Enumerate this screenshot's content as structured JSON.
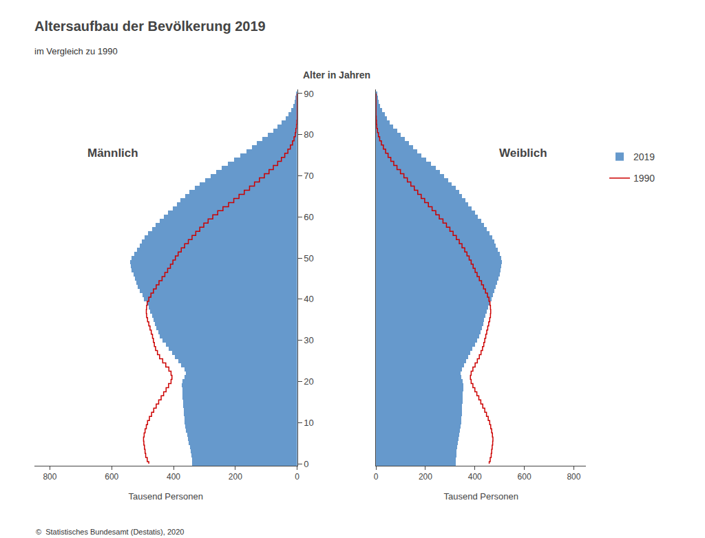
{
  "chart_data": {
    "type": "bar",
    "orientation": "horizontal",
    "title": "Altersaufbau der Bevölkerung 2019",
    "subtitle": "im Vergleich zu 1990",
    "ylabel": "Alter in Jahren",
    "source": "©  Statistisches Bundesamt (Destatis), 2020",
    "y": [
      0,
      1,
      2,
      3,
      4,
      5,
      6,
      7,
      8,
      9,
      10,
      11,
      12,
      13,
      14,
      15,
      16,
      17,
      18,
      19,
      20,
      21,
      22,
      23,
      24,
      25,
      26,
      27,
      28,
      29,
      30,
      31,
      32,
      33,
      34,
      35,
      36,
      37,
      38,
      39,
      40,
      41,
      42,
      43,
      44,
      45,
      46,
      47,
      48,
      49,
      50,
      51,
      52,
      53,
      54,
      55,
      56,
      57,
      58,
      59,
      60,
      61,
      62,
      63,
      64,
      65,
      66,
      67,
      68,
      69,
      70,
      71,
      72,
      73,
      74,
      75,
      76,
      77,
      78,
      79,
      80,
      81,
      82,
      83,
      84,
      85,
      86,
      87,
      88,
      89,
      90
    ],
    "ylim": [
      -0.5,
      91
    ],
    "yticks": [
      0,
      10,
      20,
      30,
      40,
      50,
      60,
      70,
      80,
      90
    ],
    "grid": false,
    "legend": "right",
    "panels": [
      {
        "label": "Männlich",
        "xlabel": "Tausend Personen",
        "xlim": [
          850,
          0
        ],
        "xticks": [
          0,
          200,
          400,
          600,
          800
        ],
        "series": [
          {
            "name": "2019",
            "type": "bar",
            "color": "#6699cc",
            "values": [
              340,
              340,
              342,
              344,
              347,
              350,
              353,
              356,
              359,
              362,
              364,
              365,
              366,
              367,
              368,
              369,
              370,
              371,
              372,
              373,
              370,
              365,
              360,
              365,
              375,
              385,
              395,
              405,
              415,
              425,
              435,
              445,
              450,
              455,
              460,
              465,
              470,
              475,
              480,
              488,
              495,
              500,
              510,
              515,
              520,
              525,
              530,
              535,
              538,
              540,
              535,
              528,
              518,
              510,
              502,
              493,
              482,
              470,
              458,
              445,
              432,
              418,
              403,
              390,
              378,
              363,
              348,
              332,
              315,
              298,
              280,
              262,
              244,
              225,
              205,
              185,
              165,
              147,
              130,
              113,
              95,
              78,
              63,
              50,
              38,
              28,
              20,
              13,
              8,
              5,
              2
            ]
          },
          {
            "name": "1990",
            "type": "line",
            "line_style": "step",
            "color": "#cc0000",
            "values": [
              480,
              485,
              490,
              492,
              494,
              496,
              497,
              495,
              492,
              488,
              484,
              478,
              471,
              464,
              456,
              448,
              440,
              432,
              424,
              416,
              408,
              405,
              408,
              415,
              425,
              435,
              445,
              452,
              458,
              462,
              465,
              468,
              472,
              476,
              480,
              484,
              487,
              488,
              487,
              485,
              480,
              473,
              465,
              456,
              447,
              437,
              428,
              419,
              410,
              402,
              394,
              385,
              375,
              364,
              352,
              340,
              328,
              315,
              302,
              288,
              273,
              257,
              240,
              222,
              205,
              188,
              171,
              154,
              138,
              122,
              106,
              91,
              77,
              63,
              51,
              40,
              30,
              22,
              15,
              10,
              6,
              4,
              2,
              1,
              0,
              0,
              0,
              0,
              0,
              0,
              0
            ]
          }
        ]
      },
      {
        "label": "Weiblich",
        "xlabel": "Tausend Personen",
        "xlim": [
          0,
          850
        ],
        "xticks": [
          0,
          200,
          400,
          600,
          800
        ],
        "series": [
          {
            "name": "2019",
            "type": "bar",
            "color": "#6699cc",
            "values": [
              322,
              323,
              325,
              327,
              329,
              332,
              334,
              337,
              340,
              343,
              345,
              346,
              347,
              348,
              349,
              350,
              351,
              352,
              353,
              354,
              350,
              346,
              342,
              347,
              356,
              365,
              374,
              382,
              391,
              400,
              409,
              418,
              423,
              428,
              433,
              438,
              443,
              448,
              453,
              460,
              467,
              472,
              480,
              485,
              490,
              495,
              500,
              505,
              508,
              510,
              507,
              500,
              492,
              485,
              478,
              470,
              460,
              449,
              438,
              426,
              413,
              400,
              387,
              374,
              362,
              349,
              336,
              322,
              307,
              291,
              275,
              258,
              241,
              223,
              204,
              185,
              167,
              150,
              134,
              118,
              101,
              85,
              70,
              57,
              45,
              35,
              26,
              18,
              12,
              7,
              3
            ]
          },
          {
            "name": "1990",
            "type": "line",
            "line_style": "step",
            "color": "#cc0000",
            "values": [
              458,
              462,
              466,
              468,
              470,
              472,
              473,
              471,
              468,
              464,
              460,
              454,
              447,
              440,
              432,
              424,
              416,
              408,
              400,
              392,
              385,
              382,
              385,
              392,
              401,
              410,
              418,
              425,
              431,
              436,
              440,
              444,
              448,
              452,
              456,
              460,
              463,
              464,
              463,
              461,
              457,
              451,
              443,
              435,
              427,
              418,
              409,
              401,
              393,
              385,
              377,
              368,
              359,
              348,
              337,
              325,
              312,
              299,
              285,
              271,
              256,
              242,
              227,
              212,
              197,
              183,
              169,
              155,
              141,
              127,
              113,
              99,
              85,
              72,
              60,
              49,
              39,
              30,
              22,
              15,
              10,
              6,
              3,
              2,
              1,
              0,
              0,
              0,
              0,
              0,
              0
            ]
          }
        ]
      }
    ]
  }
}
